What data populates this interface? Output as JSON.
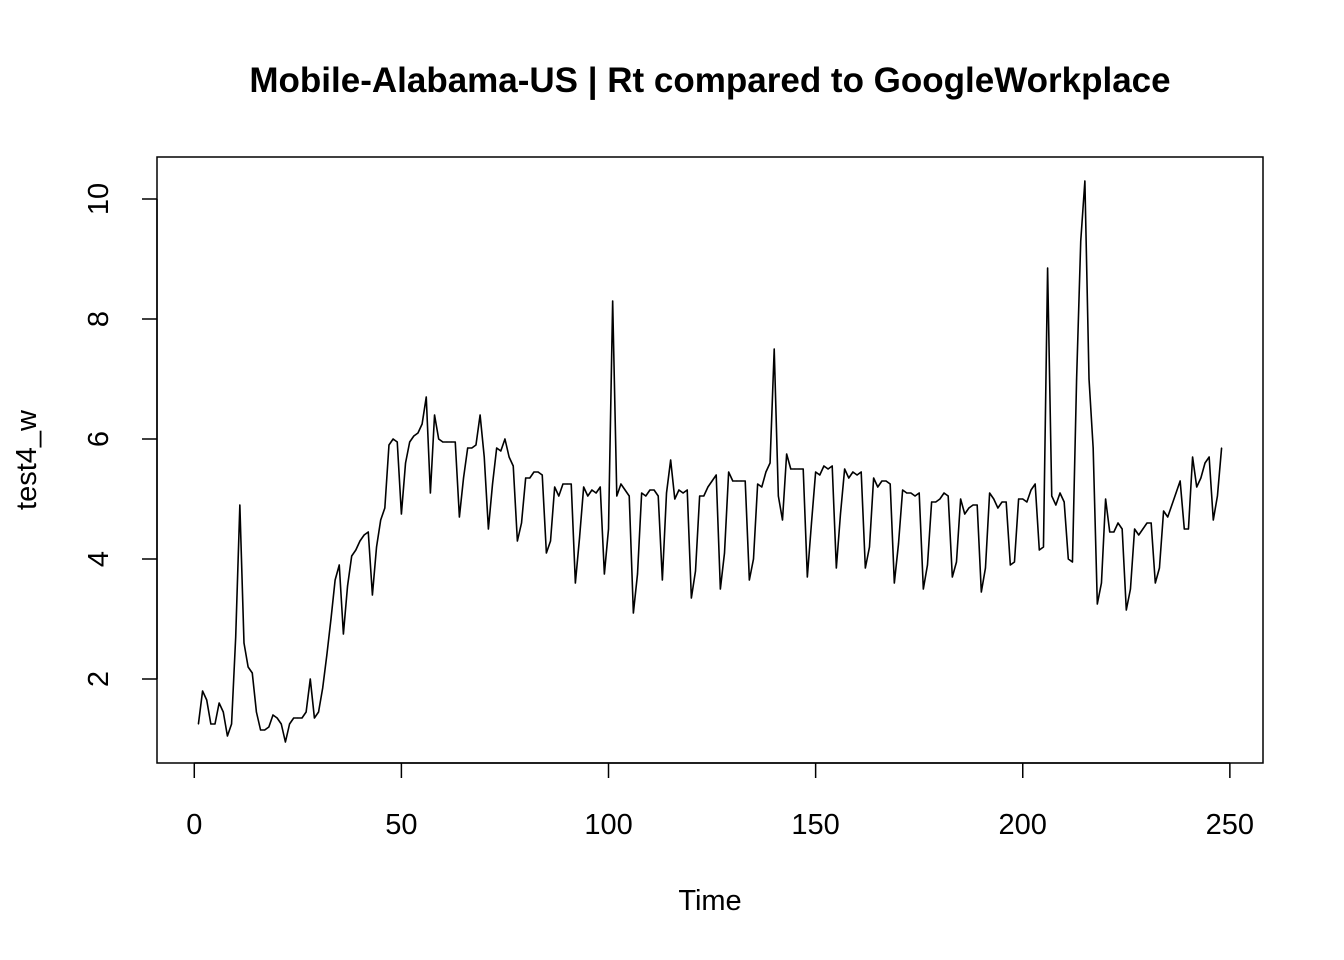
{
  "chart_data": {
    "type": "line",
    "title": "Mobile-Alabama-US | Rt compared to GoogleWorkplace",
    "xlabel": "Time",
    "ylabel": "test4_w",
    "xlim": [
      -9,
      258
    ],
    "ylim": [
      0.6,
      10.7
    ],
    "x_ticks": [
      0,
      50,
      100,
      150,
      200,
      250
    ],
    "x_tick_labels": [
      "0",
      "50",
      "100",
      "150",
      "200",
      "250"
    ],
    "y_ticks": [
      2,
      4,
      6,
      8,
      10
    ],
    "y_tick_labels": [
      "2",
      "4",
      "6",
      "8",
      "10"
    ],
    "grid": false,
    "legend": "none",
    "series": [
      {
        "color": "#000000",
        "x": [
          1,
          2,
          3,
          4,
          5,
          6,
          7,
          8,
          9,
          10,
          11,
          12,
          13,
          14,
          15,
          16,
          17,
          18,
          19,
          20,
          21,
          22,
          23,
          24,
          25,
          26,
          27,
          28,
          29,
          30,
          31,
          32,
          33,
          34,
          35,
          36,
          37,
          38,
          39,
          40,
          41,
          42,
          43,
          44,
          45,
          46,
          47,
          48,
          49,
          50,
          51,
          52,
          53,
          54,
          55,
          56,
          57,
          58,
          59,
          60,
          61,
          62,
          63,
          64,
          65,
          66,
          67,
          68,
          69,
          70,
          71,
          72,
          73,
          74,
          75,
          76,
          77,
          78,
          79,
          80,
          81,
          82,
          83,
          84,
          85,
          86,
          87,
          88,
          89,
          90,
          91,
          92,
          93,
          94,
          95,
          96,
          97,
          98,
          99,
          100,
          101,
          102,
          103,
          104,
          105,
          106,
          107,
          108,
          109,
          110,
          111,
          112,
          113,
          114,
          115,
          116,
          117,
          118,
          119,
          120,
          121,
          122,
          123,
          124,
          125,
          126,
          127,
          128,
          129,
          130,
          131,
          132,
          133,
          134,
          135,
          136,
          137,
          138,
          139,
          140,
          141,
          142,
          143,
          144,
          145,
          146,
          147,
          148,
          149,
          150,
          151,
          152,
          153,
          154,
          155,
          156,
          157,
          158,
          159,
          160,
          161,
          162,
          163,
          164,
          165,
          166,
          167,
          168,
          169,
          170,
          171,
          172,
          173,
          174,
          175,
          176,
          177,
          178,
          179,
          180,
          181,
          182,
          183,
          184,
          185,
          186,
          187,
          188,
          189,
          190,
          191,
          192,
          193,
          194,
          195,
          196,
          197,
          198,
          199,
          200,
          201,
          202,
          203,
          204,
          205,
          206,
          207,
          208,
          209,
          210,
          211,
          212,
          213,
          214,
          215,
          216,
          217,
          218,
          219,
          220,
          221,
          222,
          223,
          224,
          225,
          226,
          227,
          228,
          229,
          230,
          231,
          232,
          233,
          234,
          235,
          236,
          237,
          238,
          239,
          240,
          241,
          242,
          243,
          244,
          245,
          246,
          247,
          248
        ],
        "y": [
          1.25,
          1.8,
          1.65,
          1.25,
          1.25,
          1.6,
          1.45,
          1.05,
          1.25,
          2.7,
          4.9,
          2.6,
          2.2,
          2.1,
          1.45,
          1.15,
          1.15,
          1.2,
          1.4,
          1.35,
          1.25,
          0.95,
          1.25,
          1.35,
          1.35,
          1.35,
          1.45,
          2.0,
          1.35,
          1.45,
          1.85,
          2.4,
          3.0,
          3.65,
          3.9,
          2.75,
          3.55,
          4.05,
          4.15,
          4.3,
          4.4,
          4.45,
          3.4,
          4.2,
          4.65,
          4.85,
          5.9,
          6.0,
          5.95,
          4.75,
          5.6,
          5.95,
          6.05,
          6.1,
          6.25,
          6.7,
          5.1,
          6.4,
          6.0,
          5.95,
          5.95,
          5.95,
          5.95,
          4.7,
          5.35,
          5.85,
          5.85,
          5.9,
          6.4,
          5.7,
          4.5,
          5.25,
          5.85,
          5.8,
          6.0,
          5.7,
          5.55,
          4.3,
          4.6,
          5.35,
          5.35,
          5.45,
          5.45,
          5.4,
          4.1,
          4.3,
          5.2,
          5.05,
          5.25,
          5.25,
          5.25,
          3.6,
          4.35,
          5.2,
          5.05,
          5.15,
          5.1,
          5.2,
          3.75,
          4.5,
          8.3,
          5.05,
          5.25,
          5.15,
          5.05,
          3.1,
          3.75,
          5.1,
          5.05,
          5.15,
          5.15,
          5.05,
          3.65,
          5.1,
          5.65,
          5.0,
          5.15,
          5.1,
          5.15,
          3.35,
          3.8,
          5.05,
          5.05,
          5.2,
          5.3,
          5.4,
          3.5,
          4.1,
          5.45,
          5.3,
          5.3,
          5.3,
          5.3,
          3.65,
          4.0,
          5.25,
          5.2,
          5.45,
          5.6,
          7.5,
          5.05,
          4.65,
          5.75,
          5.5,
          5.5,
          5.5,
          5.5,
          3.7,
          4.6,
          5.45,
          5.4,
          5.55,
          5.5,
          5.55,
          3.85,
          4.75,
          5.5,
          5.35,
          5.45,
          5.4,
          5.45,
          3.85,
          4.2,
          5.35,
          5.2,
          5.3,
          5.3,
          5.25,
          3.6,
          4.25,
          5.15,
          5.1,
          5.1,
          5.05,
          5.1,
          3.5,
          3.9,
          4.95,
          4.95,
          5.0,
          5.1,
          5.05,
          3.7,
          3.95,
          5.0,
          4.75,
          4.85,
          4.9,
          4.9,
          3.45,
          3.85,
          5.1,
          5.0,
          4.85,
          4.95,
          4.95,
          3.9,
          3.95,
          5.0,
          5.0,
          4.95,
          5.15,
          5.25,
          4.15,
          4.2,
          8.85,
          5.05,
          4.9,
          5.1,
          4.95,
          4.0,
          3.95,
          7.0,
          9.3,
          10.3,
          7.0,
          5.85,
          3.25,
          3.6,
          5.0,
          4.45,
          4.45,
          4.6,
          4.5,
          3.15,
          3.5,
          4.5,
          4.4,
          4.5,
          4.6,
          4.6,
          3.6,
          3.85,
          4.8,
          4.7,
          4.9,
          5.1,
          5.3,
          4.5,
          4.5,
          5.7,
          5.2,
          5.35,
          5.6,
          5.7,
          4.65,
          5.05,
          5.85
        ]
      }
    ]
  }
}
